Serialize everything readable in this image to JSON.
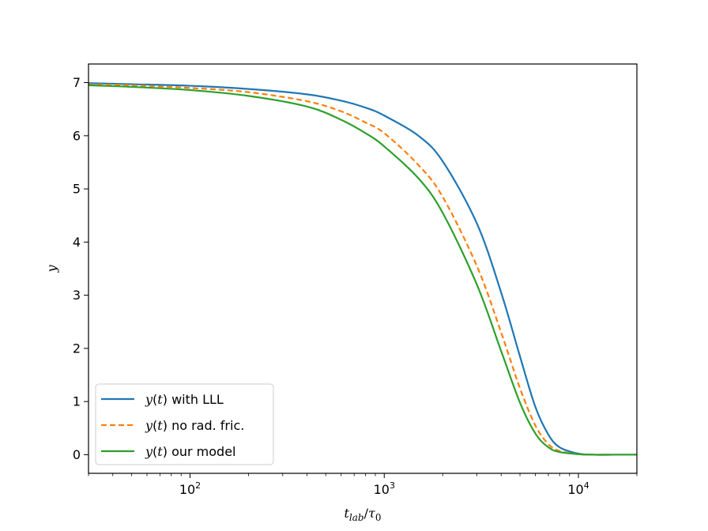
{
  "chart_data": {
    "type": "line",
    "xscale": "log",
    "xlim": [
      30,
      20000
    ],
    "ylim": [
      -0.35,
      7.35
    ],
    "xlabel": "t_lab/τ0",
    "ylabel": "y",
    "x_ticks": [
      100,
      1000,
      10000
    ],
    "x_tick_labels": [
      {
        "base": "10",
        "exp": "2"
      },
      {
        "base": "10",
        "exp": "3"
      },
      {
        "base": "10",
        "exp": "4"
      }
    ],
    "y_ticks": [
      0,
      1,
      2,
      3,
      4,
      5,
      6,
      7
    ],
    "y_tick_labels": [
      "0",
      "1",
      "2",
      "3",
      "4",
      "5",
      "6",
      "7"
    ],
    "grid": false,
    "legend_position": "lower-left",
    "series": [
      {
        "name": "y(t) with LLL",
        "legend_italic": "y",
        "legend_paren": "(",
        "legend_var": "t",
        "legend_paren_close": ")",
        "legend_rest": " with LLL",
        "color": "#1f77b4",
        "style": "solid",
        "x": [
          30,
          50,
          100,
          200,
          400,
          600,
          800,
          1000,
          1500,
          2000,
          3000,
          4000,
          5000,
          6000,
          7000,
          8000,
          10000,
          12000,
          15000,
          20000
        ],
        "y": [
          6.99,
          6.97,
          6.94,
          6.88,
          6.78,
          6.66,
          6.53,
          6.38,
          6.0,
          5.52,
          4.35,
          3.05,
          1.85,
          0.9,
          0.38,
          0.14,
          0.02,
          0.0,
          0.0,
          0.0
        ]
      },
      {
        "name": "y(t) no rad. fric.",
        "legend_italic": "y",
        "legend_paren": "(",
        "legend_var": "t",
        "legend_paren_close": ")",
        "legend_rest": " no rad. fric.",
        "color": "#ff7f0e",
        "style": "dashed",
        "x": [
          30,
          50,
          100,
          200,
          400,
          600,
          800,
          1000,
          1500,
          2000,
          3000,
          4000,
          5000,
          6000,
          7000,
          8000,
          10000,
          12000,
          15000,
          20000
        ],
        "y": [
          6.97,
          6.95,
          6.9,
          6.82,
          6.65,
          6.46,
          6.25,
          6.05,
          5.45,
          4.85,
          3.55,
          2.3,
          1.25,
          0.55,
          0.2,
          0.07,
          0.01,
          0.0,
          0.0,
          0.0
        ]
      },
      {
        "name": "y(t) our model",
        "legend_italic": "y",
        "legend_paren": "(",
        "legend_var": "t",
        "legend_paren_close": ")",
        "legend_rest": " our model",
        "color": "#2ca02c",
        "style": "solid",
        "x": [
          30,
          50,
          100,
          200,
          400,
          600,
          800,
          1000,
          1500,
          2000,
          3000,
          4000,
          5000,
          6000,
          7000,
          8000,
          10000,
          12000,
          15000,
          20000
        ],
        "y": [
          6.95,
          6.92,
          6.86,
          6.75,
          6.55,
          6.3,
          6.05,
          5.8,
          5.2,
          4.55,
          3.2,
          1.95,
          0.98,
          0.4,
          0.14,
          0.05,
          0.01,
          0.0,
          0.0,
          0.0
        ]
      }
    ]
  }
}
